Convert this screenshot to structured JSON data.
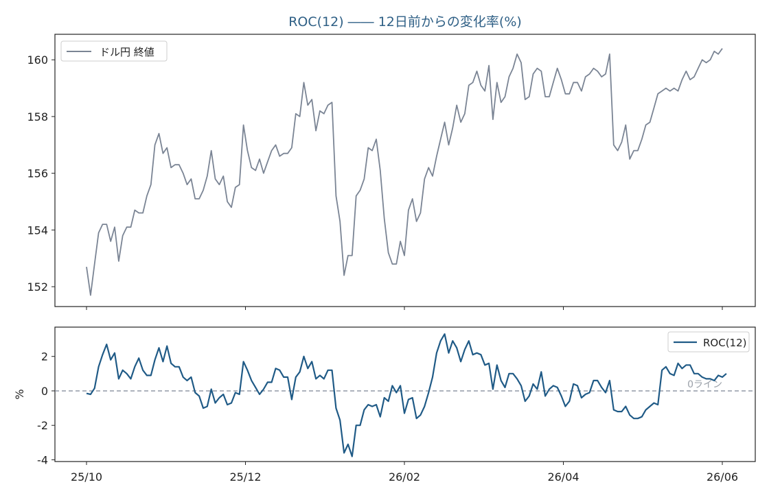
{
  "chart_data": [
    {
      "type": "line",
      "panel": "price",
      "title": "ROC(12) ―― 12日前からの変化率(%)",
      "legend": {
        "placement": "top-left",
        "entries": [
          "ドル円 終値"
        ]
      },
      "grid": false,
      "ylim": [
        151.3,
        160.9
      ],
      "yticks": [
        152,
        154,
        156,
        158,
        160
      ],
      "series": [
        {
          "name": "ドル円 終値",
          "color": "#7a8494",
          "values": [
            152.7,
            151.7,
            152.8,
            153.9,
            154.2,
            154.2,
            153.6,
            154.1,
            152.9,
            153.8,
            154.1,
            154.1,
            154.7,
            154.6,
            154.6,
            155.2,
            155.6,
            157.0,
            157.4,
            156.7,
            156.9,
            156.2,
            156.3,
            156.3,
            156.0,
            155.6,
            155.8,
            155.1,
            155.1,
            155.4,
            155.9,
            156.8,
            155.8,
            155.6,
            155.9,
            155.0,
            154.8,
            155.5,
            155.6,
            157.7,
            156.8,
            156.2,
            156.1,
            156.5,
            156.0,
            156.4,
            156.8,
            157.0,
            156.6,
            156.7,
            156.7,
            156.9,
            158.1,
            158.0,
            159.2,
            158.4,
            158.6,
            157.5,
            158.2,
            158.1,
            158.4,
            158.5,
            155.2,
            154.3,
            152.4,
            153.1,
            153.1,
            155.2,
            155.4,
            155.8,
            156.9,
            156.8,
            157.2,
            156.1,
            154.4,
            153.2,
            152.8,
            152.8,
            153.6,
            153.1,
            154.7,
            155.1,
            154.3,
            154.6,
            155.8,
            156.2,
            155.9,
            156.6,
            157.2,
            157.8,
            157.0,
            157.6,
            158.4,
            157.8,
            158.1,
            159.1,
            159.2,
            159.6,
            159.1,
            158.9,
            159.8,
            157.9,
            159.2,
            158.5,
            158.7,
            159.4,
            159.7,
            160.2,
            159.9,
            158.6,
            158.7,
            159.5,
            159.7,
            159.6,
            158.7,
            158.7,
            159.2,
            159.7,
            159.3,
            158.8,
            158.8,
            159.2,
            159.2,
            158.9,
            159.4,
            159.5,
            159.7,
            159.6,
            159.4,
            159.5,
            160.2,
            157.0,
            156.8,
            157.1,
            157.7,
            156.5,
            156.8,
            156.8,
            157.2,
            157.7,
            157.8,
            158.3,
            158.8,
            158.9,
            159.0,
            158.9,
            159.0,
            158.9,
            159.3,
            159.6,
            159.3,
            159.4,
            159.7,
            160.0,
            159.9,
            160.0,
            160.3,
            160.2,
            160.4
          ]
        }
      ]
    },
    {
      "type": "line",
      "panel": "roc",
      "ylabel": "%",
      "legend": {
        "placement": "top-right",
        "entries": [
          "ROC(12)"
        ]
      },
      "grid": false,
      "ylim": [
        -4.1,
        3.7
      ],
      "yticks": [
        -4,
        -2,
        0,
        2
      ],
      "reference_line": {
        "y": 0,
        "label": "0ライン",
        "style": "dashed"
      },
      "xticks": [
        "25/10",
        "25/12",
        "26/02",
        "26/04",
        "26/06"
      ],
      "series": [
        {
          "name": "ROC(12)",
          "color": "#1f5a86",
          "values": [
            -0.15,
            -0.2,
            0.15,
            1.4,
            2.1,
            2.7,
            1.8,
            2.2,
            0.7,
            1.2,
            1.0,
            0.7,
            1.4,
            1.9,
            1.2,
            0.9,
            0.9,
            1.8,
            2.5,
            1.7,
            2.6,
            1.6,
            1.4,
            1.4,
            0.8,
            0.6,
            0.8,
            -0.1,
            -0.3,
            -1.0,
            -0.9,
            0.1,
            -0.7,
            -0.4,
            -0.2,
            -0.8,
            -0.7,
            -0.1,
            -0.2,
            1.7,
            1.2,
            0.6,
            0.2,
            -0.2,
            0.1,
            0.5,
            0.5,
            1.3,
            1.2,
            0.8,
            0.8,
            -0.5,
            0.8,
            1.1,
            2.0,
            1.3,
            1.7,
            0.7,
            0.9,
            0.7,
            1.2,
            1.2,
            -1.0,
            -1.7,
            -3.6,
            -3.1,
            -3.8,
            -2.0,
            -2.0,
            -1.1,
            -0.8,
            -0.9,
            -0.8,
            -1.5,
            -0.4,
            -0.6,
            0.3,
            -0.1,
            0.3,
            -1.3,
            -0.5,
            -0.4,
            -1.6,
            -1.4,
            -0.9,
            -0.1,
            0.8,
            2.2,
            2.9,
            3.3,
            2.2,
            2.9,
            2.5,
            1.7,
            2.4,
            2.9,
            2.1,
            2.2,
            2.1,
            1.5,
            1.6,
            0.1,
            1.5,
            0.6,
            0.2,
            1.0,
            1.0,
            0.7,
            0.3,
            -0.6,
            -0.3,
            0.4,
            0.1,
            1.1,
            -0.3,
            0.1,
            0.3,
            0.2,
            -0.3,
            -0.9,
            -0.6,
            0.4,
            0.3,
            -0.4,
            -0.2,
            -0.1,
            0.6,
            0.6,
            0.2,
            -0.1,
            0.6,
            -1.1,
            -1.2,
            -1.2,
            -0.9,
            -1.4,
            -1.6,
            -1.6,
            -1.5,
            -1.1,
            -0.9,
            -0.7,
            -0.8,
            1.2,
            1.4,
            1.0,
            0.9,
            1.6,
            1.3,
            1.5,
            1.5,
            1.0,
            1.0,
            0.8,
            0.7,
            0.7,
            0.6,
            0.9,
            0.8,
            1.0
          ]
        }
      ]
    }
  ]
}
